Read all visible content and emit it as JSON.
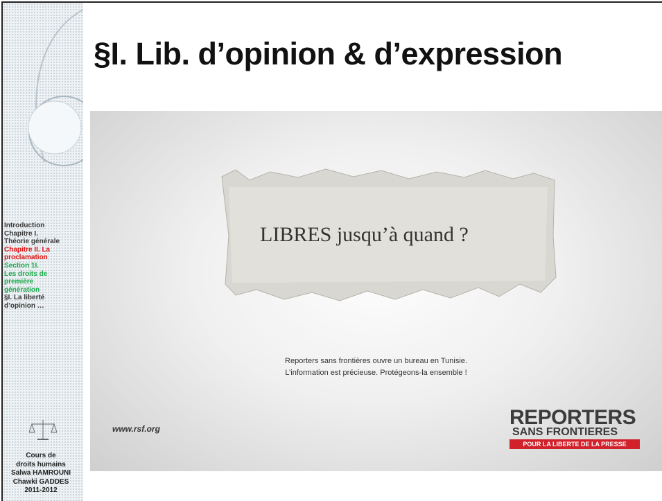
{
  "sidebar": {
    "nav": [
      {
        "text": "Introduction",
        "color": "#3a3a3a"
      },
      {
        "text": "Chapitre I.",
        "color": "#3a3a3a"
      },
      {
        "text": "Théorie générale",
        "color": "#3a3a3a"
      },
      {
        "text": "Chapitre II. La",
        "color": "#e01010"
      },
      {
        "text": "proclamation",
        "color": "#e01010"
      },
      {
        "text": "Section 1I.",
        "color": "#19a84a"
      },
      {
        "text": "Les droits de",
        "color": "#19a84a"
      },
      {
        "text": "première",
        "color": "#19a84a"
      },
      {
        "text": "génération",
        "color": "#19a84a"
      },
      {
        "text": "§I. La liberté",
        "color": "#3a3a3a"
      },
      {
        "text": "d’opinion …",
        "color": "#3a3a3a"
      }
    ],
    "footer": [
      "Cours de",
      "droits humains",
      "Salwa HAMROUNI",
      "Chawki GADDES",
      "2011-2012"
    ]
  },
  "title": "§I. Lib. d’opinion & d’expression",
  "image": {
    "headline": "LIBRES jusqu’à quand ?",
    "caption": [
      "Reporters sans frontières ouvre un bureau en Tunisie.",
      "L’information est précieuse. Protégeons-la ensemble !"
    ],
    "url": "www.rsf.org",
    "logo": {
      "line1": "REPORTERS",
      "line2": "SANS FRONTIERES",
      "line3": "POUR LA LIBERTE DE LA PRESSE"
    }
  }
}
